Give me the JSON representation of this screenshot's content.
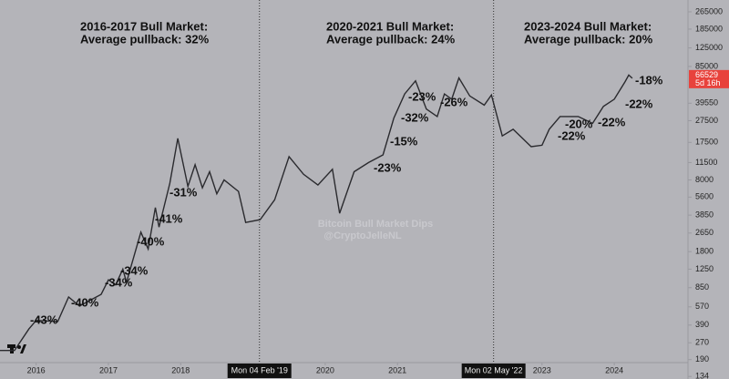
{
  "chart_data": {
    "type": "line",
    "log_scale": true,
    "grid": false,
    "watermark_title": "Bitcoin Bull Market Dips",
    "watermark_author": "@CryptoJelleNL",
    "headings": [
      {
        "title": "2016-2017 Bull Market:",
        "subtitle": "Average pullback: 32%"
      },
      {
        "title": "2020-2021 Bull Market:",
        "subtitle": "Average pullback: 24%"
      },
      {
        "title": "2023-2024 Bull Market:",
        "subtitle": "Average pullback: 20%"
      }
    ],
    "pullback_labels": [
      "-43%",
      "-40%",
      "-34%",
      "-34%",
      "-40%",
      "-41%",
      "-31%",
      "-23%",
      "-15%",
      "-32%",
      "-23%",
      "-26%",
      "-22%",
      "-20%",
      "-22%",
      "-22%",
      "-18%"
    ],
    "crosshairs": [
      {
        "value": 2019.09,
        "label": "Mon 04 Feb '19"
      },
      {
        "value": 2022.33,
        "label": "Mon 02 May '22"
      }
    ],
    "last_price": 66529,
    "countdown": "5d 16h",
    "xlim": [
      2015.5,
      2025.02
    ],
    "xticks": [
      2016,
      2017,
      2018,
      2020,
      2021,
      2023,
      2024
    ],
    "ylim": [
      127,
      339000
    ],
    "yticks": [
      134,
      190,
      270,
      390,
      570,
      850,
      1250,
      1800,
      2650,
      3850,
      5600,
      8000,
      11500,
      17500,
      27500,
      39550,
      85000,
      125000,
      185000,
      265000
    ],
    "series": [
      {
        "name": "BTC",
        "color": "#2a2a2e",
        "x": [
          2015.5,
          2015.7,
          2015.9,
          2016.0,
          2016.3,
          2016.45,
          2016.6,
          2016.9,
          2017.0,
          2017.1,
          2017.2,
          2017.25,
          2017.45,
          2017.55,
          2017.65,
          2017.7,
          2017.85,
          2017.96,
          2018.1,
          2018.2,
          2018.3,
          2018.4,
          2018.5,
          2018.6,
          2018.8,
          2018.9,
          2019.1,
          2019.3,
          2019.5,
          2019.7,
          2019.9,
          2020.1,
          2020.2,
          2020.4,
          2020.6,
          2020.8,
          2020.95,
          2021.1,
          2021.25,
          2021.4,
          2021.55,
          2021.65,
          2021.75,
          2021.85,
          2022.0,
          2022.2,
          2022.3,
          2022.45,
          2022.6,
          2022.85,
          2023.0,
          2023.1,
          2023.25,
          2023.5,
          2023.7,
          2023.85,
          2024.0,
          2024.15,
          2024.2,
          2024.25
        ],
        "values": [
          230,
          230,
          360,
          430,
          420,
          700,
          580,
          740,
          1000,
          900,
          1250,
          950,
          2700,
          1900,
          4500,
          3000,
          7500,
          19000,
          7000,
          11000,
          6800,
          9500,
          6000,
          8000,
          6300,
          3300,
          3500,
          5300,
          13000,
          9000,
          7200,
          10000,
          4000,
          9500,
          11500,
          13500,
          29000,
          48000,
          63000,
          35000,
          30000,
          48000,
          43000,
          67000,
          46000,
          38000,
          47000,
          20000,
          23000,
          16000,
          16500,
          23000,
          30000,
          30000,
          26000,
          37000,
          43000,
          62000,
          71000,
          66529
        ]
      }
    ]
  }
}
